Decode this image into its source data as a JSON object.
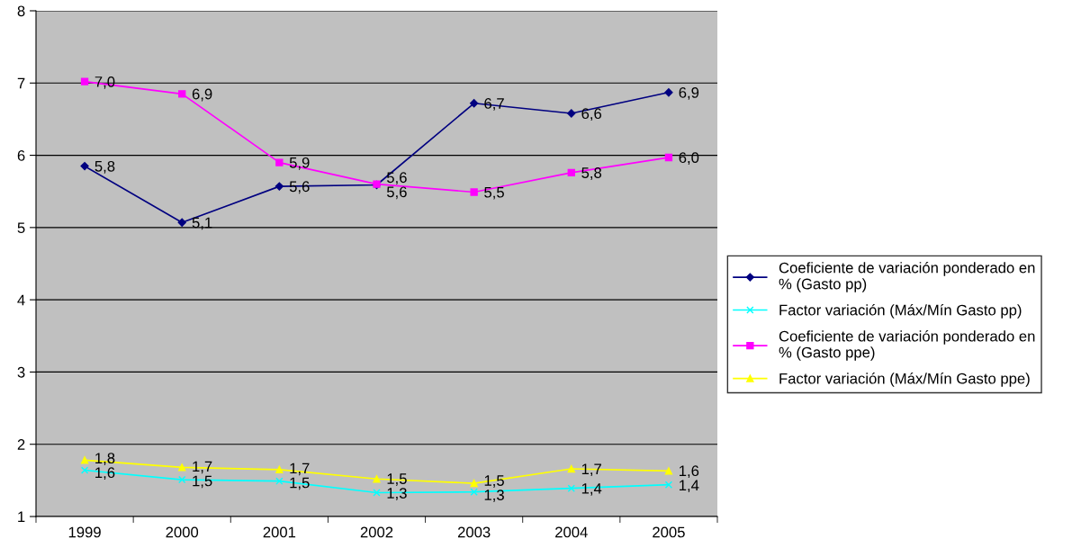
{
  "chart_data": {
    "type": "line",
    "categories": [
      "1999",
      "2000",
      "2001",
      "2002",
      "2003",
      "2004",
      "2005"
    ],
    "series": [
      {
        "name": "Coeficiente de variación ponderado en\n% (Gasto pp)",
        "color": "#000080",
        "marker": "diamond",
        "values": [
          5.85,
          5.07,
          5.57,
          5.59,
          6.72,
          6.58,
          6.87
        ],
        "value_labels": [
          "5,8",
          "5,1",
          "5,6",
          "5,6",
          "6,7",
          "6,6",
          "6,9"
        ]
      },
      {
        "name": "Factor variación (Máx/Mín Gasto pp)",
        "color": "#00ffff",
        "marker": "cross",
        "values": [
          1.64,
          1.51,
          1.49,
          1.33,
          1.34,
          1.39,
          1.44
        ],
        "value_labels": [
          "1,6",
          "1,5",
          "1,5",
          "1,3",
          "1,3",
          "1,4",
          "1,4"
        ]
      },
      {
        "name": "Coeficiente de variación ponderado en\n% (Gasto ppe)",
        "color": "#ff00ff",
        "marker": "square",
        "values": [
          7.02,
          6.85,
          5.9,
          5.6,
          5.49,
          5.76,
          5.97
        ],
        "value_labels": [
          "7,0",
          "6,9",
          "5,9",
          "5,6",
          "5,5",
          "5,8",
          "6,0"
        ]
      },
      {
        "name": "Factor variación (Máx/Mín Gasto ppe)",
        "color": "#ffff00",
        "marker": "triangle",
        "values": [
          1.78,
          1.68,
          1.65,
          1.52,
          1.46,
          1.66,
          1.63
        ],
        "value_labels": [
          "1,8",
          "1,7",
          "1,7",
          "1,5",
          "1,5",
          "1,7",
          "1,6"
        ]
      }
    ],
    "ylim": [
      1,
      8
    ],
    "yticks": [
      1,
      2,
      3,
      4,
      5,
      6,
      7,
      8
    ],
    "grid": "y",
    "legend": "right",
    "line_style": "solid"
  }
}
